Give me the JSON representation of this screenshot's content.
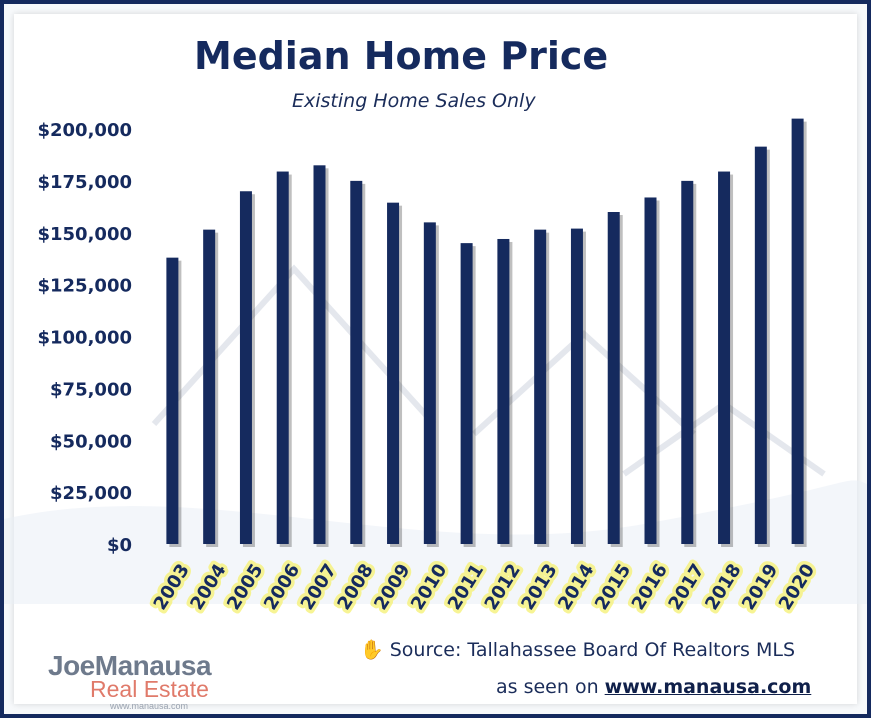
{
  "chart_data": {
    "type": "bar",
    "title": "Median Home Price",
    "subtitle": "Existing Home Sales Only",
    "categories": [
      "2003",
      "2004",
      "2005",
      "2006",
      "2007",
      "2008",
      "2009",
      "2010",
      "2011",
      "2012",
      "2013",
      "2014",
      "2015",
      "2016",
      "2017",
      "2018",
      "2019",
      "2020"
    ],
    "values": [
      138000,
      151500,
      170000,
      179500,
      182500,
      175000,
      164500,
      155000,
      145000,
      147000,
      151500,
      152000,
      160000,
      167000,
      175000,
      179500,
      191500,
      205000
    ],
    "ylim": [
      0,
      200000
    ],
    "yticks": [
      0,
      25000,
      50000,
      75000,
      100000,
      125000,
      150000,
      175000,
      200000
    ],
    "ytick_labels": [
      "$0",
      "$25,000",
      "$50,000",
      "$75,000",
      "$100,000",
      "$125,000",
      "$150,000",
      "$175,000",
      "$200,000"
    ],
    "xlabel": "",
    "ylabel": "",
    "grid": false,
    "legend": "none",
    "bar_color": "#152a5e"
  },
  "source": {
    "text": "Source: Tallahassee Board Of Realtors MLS",
    "seen_prefix": "as seen on",
    "url": "www.manausa.com",
    "icon": "hand-icon"
  },
  "logo": {
    "first": "Joe",
    "last": "Manausa",
    "sub": "Real Estate",
    "url": "www.manausa.com"
  }
}
